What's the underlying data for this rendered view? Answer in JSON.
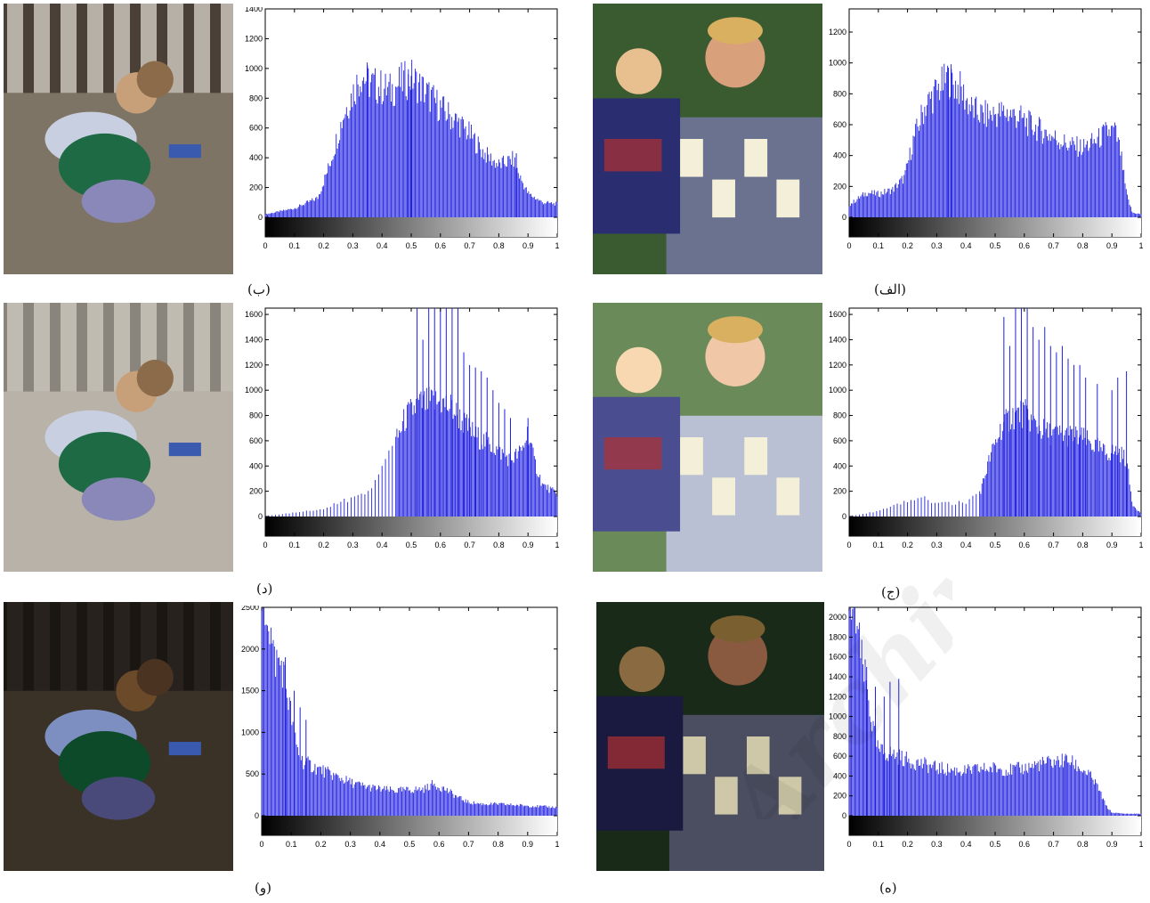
{
  "colors": {
    "bar": "#2020e0",
    "axis": "#000000",
    "tick_text": "#000000"
  },
  "watermark_text": "Archive of SID",
  "panels": [
    {
      "label": "(ب)",
      "photo_icon": "children-photo",
      "chart_data": {
        "type": "bar",
        "xlabel": "",
        "ylabel": "",
        "xlim": [
          0,
          1
        ],
        "ylim": [
          0,
          1400
        ],
        "yticks": [
          0,
          200,
          400,
          600,
          800,
          1000,
          1200,
          1400
        ],
        "xticks": [
          0,
          0.1,
          0.2,
          0.3,
          0.4,
          0.5,
          0.6,
          0.7,
          0.8,
          0.9,
          1
        ],
        "colorbar": true,
        "profile": [
          [
            0,
            20
          ],
          [
            0.1,
            60
          ],
          [
            0.18,
            130
          ],
          [
            0.22,
            350
          ],
          [
            0.27,
            700
          ],
          [
            0.31,
            880
          ],
          [
            0.33,
            960
          ],
          [
            0.36,
            900
          ],
          [
            0.4,
            870
          ],
          [
            0.43,
            850
          ],
          [
            0.46,
            900
          ],
          [
            0.5,
            940
          ],
          [
            0.53,
            880
          ],
          [
            0.58,
            780
          ],
          [
            0.62,
            700
          ],
          [
            0.66,
            640
          ],
          [
            0.7,
            560
          ],
          [
            0.75,
            430
          ],
          [
            0.8,
            350
          ],
          [
            0.85,
            390
          ],
          [
            0.87,
            280
          ],
          [
            0.9,
            160
          ],
          [
            0.95,
            100
          ],
          [
            1,
            90
          ]
        ],
        "spikes": [
          [
            0.35,
            1020
          ],
          [
            0.49,
            960
          ],
          [
            0.5,
            950
          ],
          [
            0.86,
            430
          ]
        ]
      }
    },
    {
      "label": "(الف)",
      "photo_icon": "father-daughter-photo",
      "chart_data": {
        "type": "bar",
        "xlabel": "",
        "ylabel": "",
        "xlim": [
          0,
          1
        ],
        "ylim": [
          0,
          1350
        ],
        "yticks": [
          0,
          200,
          400,
          600,
          800,
          1000,
          1200
        ],
        "xticks": [
          0,
          0.1,
          0.2,
          0.3,
          0.4,
          0.5,
          0.6,
          0.7,
          0.8,
          0.9,
          1
        ],
        "colorbar": true,
        "profile": [
          [
            0,
            80
          ],
          [
            0.03,
            120
          ],
          [
            0.06,
            160
          ],
          [
            0.1,
            150
          ],
          [
            0.15,
            180
          ],
          [
            0.19,
            260
          ],
          [
            0.22,
            500
          ],
          [
            0.26,
            720
          ],
          [
            0.3,
            820
          ],
          [
            0.34,
            900
          ],
          [
            0.38,
            830
          ],
          [
            0.42,
            700
          ],
          [
            0.46,
            660
          ],
          [
            0.5,
            670
          ],
          [
            0.54,
            680
          ],
          [
            0.58,
            650
          ],
          [
            0.62,
            600
          ],
          [
            0.66,
            560
          ],
          [
            0.7,
            520
          ],
          [
            0.75,
            470
          ],
          [
            0.8,
            450
          ],
          [
            0.85,
            500
          ],
          [
            0.88,
            550
          ],
          [
            0.91,
            560
          ],
          [
            0.93,
            420
          ],
          [
            0.95,
            150
          ],
          [
            0.97,
            30
          ],
          [
            1,
            20
          ]
        ],
        "spikes": [
          [
            0.34,
            970
          ],
          [
            0.35,
            960
          ]
        ]
      }
    },
    {
      "label": "(د)",
      "photo_icon": "children-photo",
      "chart_data": {
        "type": "bar",
        "xlabel": "",
        "ylabel": "",
        "xlim": [
          0,
          1
        ],
        "ylim": [
          0,
          1650
        ],
        "yticks": [
          0,
          200,
          400,
          600,
          800,
          1000,
          1200,
          1400,
          1600
        ],
        "xticks": [
          0,
          0.1,
          0.2,
          0.3,
          0.4,
          0.5,
          0.6,
          0.7,
          0.8,
          0.9,
          1
        ],
        "colorbar": true,
        "sparse_before": 0.45,
        "profile": [
          [
            0,
            5
          ],
          [
            0.1,
            30
          ],
          [
            0.2,
            60
          ],
          [
            0.3,
            150
          ],
          [
            0.36,
            220
          ],
          [
            0.4,
            350
          ],
          [
            0.44,
            550
          ],
          [
            0.48,
            780
          ],
          [
            0.52,
            880
          ],
          [
            0.56,
            900
          ],
          [
            0.6,
            900
          ],
          [
            0.64,
            860
          ],
          [
            0.68,
            740
          ],
          [
            0.72,
            640
          ],
          [
            0.76,
            580
          ],
          [
            0.8,
            520
          ],
          [
            0.84,
            450
          ],
          [
            0.88,
            520
          ],
          [
            0.9,
            680
          ],
          [
            0.92,
            450
          ],
          [
            0.95,
            250
          ],
          [
            1,
            180
          ]
        ],
        "spikes": [
          [
            0.52,
            1650
          ],
          [
            0.54,
            1400
          ],
          [
            0.56,
            1650
          ],
          [
            0.58,
            1650
          ],
          [
            0.6,
            1650
          ],
          [
            0.62,
            1650
          ],
          [
            0.64,
            1650
          ],
          [
            0.66,
            1650
          ],
          [
            0.68,
            1300
          ],
          [
            0.7,
            1200
          ],
          [
            0.72,
            1180
          ],
          [
            0.74,
            1150
          ],
          [
            0.76,
            1100
          ],
          [
            0.78,
            1000
          ],
          [
            0.8,
            900
          ],
          [
            0.82,
            850
          ],
          [
            0.84,
            780
          ],
          [
            0.9,
            780
          ]
        ]
      }
    },
    {
      "label": "(ج)",
      "photo_icon": "father-daughter-photo",
      "chart_data": {
        "type": "bar",
        "xlabel": "",
        "ylabel": "",
        "xlim": [
          0,
          1
        ],
        "ylim": [
          0,
          1650
        ],
        "yticks": [
          0,
          200,
          400,
          600,
          800,
          1000,
          1200,
          1400,
          1600
        ],
        "xticks": [
          0,
          0.1,
          0.2,
          0.3,
          0.4,
          0.5,
          0.6,
          0.7,
          0.8,
          0.9,
          1
        ],
        "colorbar": true,
        "sparse_before": 0.45,
        "profile": [
          [
            0,
            5
          ],
          [
            0.1,
            40
          ],
          [
            0.2,
            120
          ],
          [
            0.25,
            160
          ],
          [
            0.3,
            100
          ],
          [
            0.4,
            110
          ],
          [
            0.45,
            200
          ],
          [
            0.48,
            450
          ],
          [
            0.52,
            700
          ],
          [
            0.56,
            800
          ],
          [
            0.6,
            820
          ],
          [
            0.64,
            720
          ],
          [
            0.68,
            660
          ],
          [
            0.72,
            650
          ],
          [
            0.76,
            640
          ],
          [
            0.8,
            620
          ],
          [
            0.84,
            560
          ],
          [
            0.88,
            500
          ],
          [
            0.92,
            520
          ],
          [
            0.95,
            450
          ],
          [
            0.97,
            100
          ],
          [
            1,
            20
          ]
        ],
        "spikes": [
          [
            0.53,
            1580
          ],
          [
            0.55,
            1350
          ],
          [
            0.57,
            1650
          ],
          [
            0.59,
            1650
          ],
          [
            0.61,
            1650
          ],
          [
            0.63,
            1500
          ],
          [
            0.65,
            1400
          ],
          [
            0.67,
            1500
          ],
          [
            0.69,
            1350
          ],
          [
            0.71,
            1300
          ],
          [
            0.73,
            1350
          ],
          [
            0.75,
            1250
          ],
          [
            0.77,
            1200
          ],
          [
            0.79,
            1200
          ],
          [
            0.81,
            1100
          ],
          [
            0.85,
            1050
          ],
          [
            0.9,
            1000
          ],
          [
            0.92,
            1100
          ],
          [
            0.95,
            1150
          ]
        ]
      }
    },
    {
      "label": "(و)",
      "photo_icon": "children-photo",
      "chart_data": {
        "type": "bar",
        "xlabel": "",
        "ylabel": "",
        "xlim": [
          0,
          1
        ],
        "ylim": [
          0,
          2500
        ],
        "yticks": [
          0,
          500,
          1000,
          1500,
          2000,
          2500
        ],
        "xticks": [
          0,
          0.1,
          0.2,
          0.3,
          0.4,
          0.5,
          0.6,
          0.7,
          0.8,
          0.9,
          1
        ],
        "colorbar": true,
        "profile": [
          [
            0,
            2500
          ],
          [
            0.02,
            2500
          ],
          [
            0.04,
            1900
          ],
          [
            0.07,
            1800
          ],
          [
            0.1,
            1200
          ],
          [
            0.12,
            800
          ],
          [
            0.14,
            650
          ],
          [
            0.18,
            580
          ],
          [
            0.22,
            520
          ],
          [
            0.26,
            460
          ],
          [
            0.3,
            400
          ],
          [
            0.35,
            350
          ],
          [
            0.4,
            320
          ],
          [
            0.45,
            300
          ],
          [
            0.5,
            310
          ],
          [
            0.55,
            320
          ],
          [
            0.58,
            380
          ],
          [
            0.62,
            320
          ],
          [
            0.66,
            230
          ],
          [
            0.7,
            160
          ],
          [
            0.75,
            140
          ],
          [
            0.8,
            140
          ],
          [
            0.85,
            130
          ],
          [
            0.9,
            120
          ],
          [
            0.95,
            110
          ],
          [
            1,
            100
          ]
        ],
        "spikes": [
          [
            0.08,
            1900
          ],
          [
            0.11,
            1500
          ],
          [
            0.13,
            1300
          ],
          [
            0.15,
            1150
          ]
        ]
      }
    },
    {
      "label": "(ه)",
      "photo_icon": "father-daughter-photo",
      "chart_data": {
        "type": "bar",
        "xlabel": "",
        "ylabel": "",
        "xlim": [
          0,
          1
        ],
        "ylim": [
          0,
          2100
        ],
        "yticks": [
          0,
          200,
          400,
          600,
          800,
          1000,
          1200,
          1400,
          1600,
          1800,
          2000
        ],
        "xticks": [
          0,
          0.1,
          0.2,
          0.3,
          0.4,
          0.5,
          0.6,
          0.7,
          0.8,
          0.9,
          1
        ],
        "colorbar": true,
        "profile": [
          [
            0,
            2100
          ],
          [
            0.02,
            2100
          ],
          [
            0.04,
            1600
          ],
          [
            0.06,
            1300
          ],
          [
            0.08,
            900
          ],
          [
            0.1,
            650
          ],
          [
            0.15,
            620
          ],
          [
            0.2,
            560
          ],
          [
            0.25,
            520
          ],
          [
            0.3,
            480
          ],
          [
            0.35,
            460
          ],
          [
            0.4,
            450
          ],
          [
            0.45,
            470
          ],
          [
            0.5,
            480
          ],
          [
            0.55,
            460
          ],
          [
            0.6,
            480
          ],
          [
            0.65,
            520
          ],
          [
            0.7,
            540
          ],
          [
            0.75,
            560
          ],
          [
            0.78,
            500
          ],
          [
            0.82,
            420
          ],
          [
            0.85,
            300
          ],
          [
            0.88,
            100
          ],
          [
            0.9,
            30
          ],
          [
            0.95,
            20
          ],
          [
            1,
            20
          ]
        ],
        "spikes": [
          [
            0.06,
            1500
          ],
          [
            0.09,
            1300
          ],
          [
            0.12,
            1200
          ],
          [
            0.14,
            1350
          ],
          [
            0.17,
            1380
          ],
          [
            0.74,
            600
          ]
        ]
      }
    }
  ]
}
